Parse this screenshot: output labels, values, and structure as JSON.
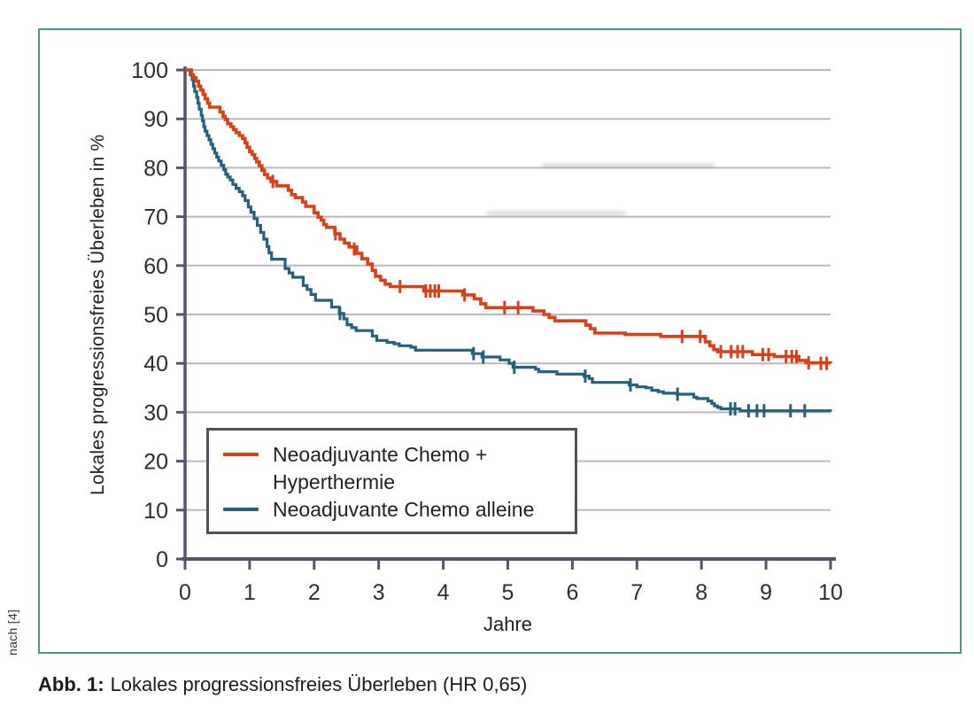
{
  "figure": {
    "border_color": "#4d938f",
    "source_note": "nach [4]",
    "caption": {
      "prefix": "Abb. 1:",
      "text": "Lokales progressionsfreies Überleben (HR 0,65)"
    }
  },
  "chart_data": {
    "type": "line",
    "subtype": "kaplan-meier-step",
    "title": "",
    "xlabel": "Jahre",
    "ylabel": "Lokales progressionsfreies Überleben in %",
    "xlim": [
      0,
      10
    ],
    "ylim": [
      0,
      100
    ],
    "xticks": [
      0,
      1,
      2,
      3,
      4,
      5,
      6,
      7,
      8,
      9,
      10
    ],
    "yticks": [
      0,
      10,
      20,
      30,
      40,
      50,
      60,
      70,
      80,
      90,
      100
    ],
    "grid": "horizontal",
    "legend_position": "lower-left-inside",
    "colors": {
      "grid": "#b7b8c4",
      "axis": "#54546a",
      "tick_label": "#2d2d2d",
      "legend_border": "#50505e"
    },
    "series": [
      {
        "name": "Neoadjuvante Chemo + Hyperthermie",
        "legend_lines": [
          "Neoadjuvante Chemo +",
          "Hyperthermie"
        ],
        "color": "#d84118",
        "points": [
          [
            0,
            100
          ],
          [
            0.1,
            99
          ],
          [
            0.13,
            98.4
          ],
          [
            0.17,
            97.7
          ],
          [
            0.21,
            96.7
          ],
          [
            0.24,
            95.9
          ],
          [
            0.28,
            95
          ],
          [
            0.31,
            94.1
          ],
          [
            0.35,
            93.2
          ],
          [
            0.38,
            92.4
          ],
          [
            0.54,
            91.4
          ],
          [
            0.59,
            90.5
          ],
          [
            0.62,
            89.9
          ],
          [
            0.66,
            89
          ],
          [
            0.71,
            88.4
          ],
          [
            0.75,
            87.8
          ],
          [
            0.79,
            87.2
          ],
          [
            0.84,
            86.6
          ],
          [
            0.89,
            86
          ],
          [
            0.93,
            85.1
          ],
          [
            0.96,
            84.2
          ],
          [
            1,
            83.3
          ],
          [
            1.04,
            82.7
          ],
          [
            1.08,
            81.9
          ],
          [
            1.11,
            81.2
          ],
          [
            1.15,
            80.4
          ],
          [
            1.19,
            79.5
          ],
          [
            1.23,
            78.6
          ],
          [
            1.28,
            77.9
          ],
          [
            1.33,
            77.2
          ],
          [
            1.42,
            76.3
          ],
          [
            1.6,
            75.4
          ],
          [
            1.65,
            74.5
          ],
          [
            1.71,
            73.9
          ],
          [
            1.82,
            73
          ],
          [
            1.87,
            72.1
          ],
          [
            2,
            70.8
          ],
          [
            2.06,
            69.9
          ],
          [
            2.11,
            69.3
          ],
          [
            2.15,
            68.4
          ],
          [
            2.19,
            67.8
          ],
          [
            2.32,
            66.5
          ],
          [
            2.4,
            65.4
          ],
          [
            2.47,
            64.6
          ],
          [
            2.54,
            63.8
          ],
          [
            2.66,
            62.5
          ],
          [
            2.74,
            61.4
          ],
          [
            2.83,
            60.3
          ],
          [
            2.9,
            59
          ],
          [
            2.95,
            57.8
          ],
          [
            3.03,
            57
          ],
          [
            3.1,
            56.2
          ],
          [
            3.18,
            55.7
          ],
          [
            3.7,
            54.8
          ],
          [
            4.3,
            54
          ],
          [
            4.48,
            53.2
          ],
          [
            4.58,
            52.2
          ],
          [
            4.66,
            51.4
          ],
          [
            5.39,
            50.7
          ],
          [
            5.56,
            50
          ],
          [
            5.64,
            49.4
          ],
          [
            5.73,
            48.7
          ],
          [
            6.21,
            47.8
          ],
          [
            6.28,
            47.1
          ],
          [
            6.35,
            46.2
          ],
          [
            6.82,
            45.9
          ],
          [
            7.37,
            45.5
          ],
          [
            8.06,
            44.4
          ],
          [
            8.13,
            43.6
          ],
          [
            8.19,
            42.8
          ],
          [
            8.25,
            42.4
          ],
          [
            8.79,
            41.8
          ],
          [
            9.13,
            41.4
          ],
          [
            9.51,
            40.6
          ],
          [
            9.62,
            40.1
          ],
          [
            10,
            40
          ]
        ],
        "censor_marks": [
          [
            1.36,
            77.2
          ],
          [
            2.33,
            66.5
          ],
          [
            2.62,
            63.4
          ],
          [
            3.33,
            55.7
          ],
          [
            3.73,
            54.8
          ],
          [
            3.8,
            54.8
          ],
          [
            3.87,
            54.8
          ],
          [
            3.93,
            54.8
          ],
          [
            4.33,
            54
          ],
          [
            4.95,
            51.4
          ],
          [
            5.16,
            51.4
          ],
          [
            7.7,
            45.5
          ],
          [
            7.98,
            45.5
          ],
          [
            8.3,
            42.4
          ],
          [
            8.46,
            42.4
          ],
          [
            8.56,
            42.4
          ],
          [
            8.64,
            42.4
          ],
          [
            8.95,
            41.8
          ],
          [
            9.04,
            41.8
          ],
          [
            9.31,
            41.4
          ],
          [
            9.4,
            41.4
          ],
          [
            9.47,
            41.4
          ],
          [
            9.66,
            40.1
          ],
          [
            9.85,
            40
          ],
          [
            9.94,
            40
          ]
        ]
      },
      {
        "name": "Neoadjuvante Chemo alleine",
        "legend_lines": [
          "Neoadjuvante Chemo alleine"
        ],
        "color": "#26617b",
        "points": [
          [
            0,
            100
          ],
          [
            0.08,
            99
          ],
          [
            0.11,
            98
          ],
          [
            0.13,
            96.7
          ],
          [
            0.15,
            95.6
          ],
          [
            0.18,
            94.4
          ],
          [
            0.2,
            93.2
          ],
          [
            0.22,
            92
          ],
          [
            0.25,
            90.7
          ],
          [
            0.27,
            89.6
          ],
          [
            0.29,
            88.4
          ],
          [
            0.31,
            87.5
          ],
          [
            0.34,
            86.6
          ],
          [
            0.37,
            85.7
          ],
          [
            0.4,
            84.8
          ],
          [
            0.43,
            83.9
          ],
          [
            0.46,
            83
          ],
          [
            0.49,
            82.2
          ],
          [
            0.52,
            81.4
          ],
          [
            0.56,
            80.5
          ],
          [
            0.6,
            79.6
          ],
          [
            0.63,
            78.7
          ],
          [
            0.66,
            78.1
          ],
          [
            0.7,
            77.5
          ],
          [
            0.74,
            76.6
          ],
          [
            0.79,
            75.8
          ],
          [
            0.84,
            75.1
          ],
          [
            0.89,
            74.3
          ],
          [
            0.93,
            73.3
          ],
          [
            0.98,
            72
          ],
          [
            1.02,
            70.9
          ],
          [
            1.07,
            69.6
          ],
          [
            1.12,
            68.2
          ],
          [
            1.17,
            66.8
          ],
          [
            1.22,
            65.4
          ],
          [
            1.27,
            63.9
          ],
          [
            1.3,
            62.6
          ],
          [
            1.34,
            61.3
          ],
          [
            1.55,
            59.4
          ],
          [
            1.61,
            58.5
          ],
          [
            1.67,
            57.6
          ],
          [
            1.83,
            55.9
          ],
          [
            1.89,
            55.1
          ],
          [
            1.95,
            54.1
          ],
          [
            2.02,
            52.9
          ],
          [
            2.27,
            51.5
          ],
          [
            2.39,
            50.2
          ],
          [
            2.46,
            49.1
          ],
          [
            2.51,
            47.9
          ],
          [
            2.58,
            47.3
          ],
          [
            2.65,
            46.7
          ],
          [
            2.9,
            45.6
          ],
          [
            2.97,
            44.7
          ],
          [
            3.13,
            44.3
          ],
          [
            3.24,
            44
          ],
          [
            3.32,
            43.6
          ],
          [
            3.5,
            43.3
          ],
          [
            3.57,
            42.7
          ],
          [
            4.45,
            42
          ],
          [
            4.6,
            41.3
          ],
          [
            4.88,
            40.7
          ],
          [
            5.02,
            40
          ],
          [
            5.08,
            39.2
          ],
          [
            5.43,
            38.8
          ],
          [
            5.48,
            38.3
          ],
          [
            5.76,
            37.8
          ],
          [
            6.18,
            37.4
          ],
          [
            6.26,
            36.9
          ],
          [
            6.31,
            36.1
          ],
          [
            6.88,
            35.6
          ],
          [
            7,
            35.2
          ],
          [
            7.14,
            35
          ],
          [
            7.23,
            34.5
          ],
          [
            7.33,
            34.2
          ],
          [
            7.41,
            33.9
          ],
          [
            7.62,
            33.7
          ],
          [
            7.88,
            33.1
          ],
          [
            7.93,
            32.8
          ],
          [
            8.1,
            32.3
          ],
          [
            8.16,
            31.8
          ],
          [
            8.2,
            31.3
          ],
          [
            8.25,
            31
          ],
          [
            8.3,
            30.7
          ],
          [
            8.6,
            30.3
          ],
          [
            10,
            30.1
          ]
        ],
        "censor_marks": [
          [
            2.4,
            50.2
          ],
          [
            4.47,
            42
          ],
          [
            4.62,
            41.3
          ],
          [
            5.1,
            39.2
          ],
          [
            6.2,
            37.4
          ],
          [
            6.9,
            35.6
          ],
          [
            7.63,
            33.7
          ],
          [
            8.45,
            30.7
          ],
          [
            8.52,
            30.7
          ],
          [
            8.73,
            30.3
          ],
          [
            8.86,
            30.3
          ],
          [
            8.97,
            30.3
          ],
          [
            9.38,
            30.3
          ],
          [
            9.6,
            30.3
          ]
        ]
      }
    ]
  }
}
